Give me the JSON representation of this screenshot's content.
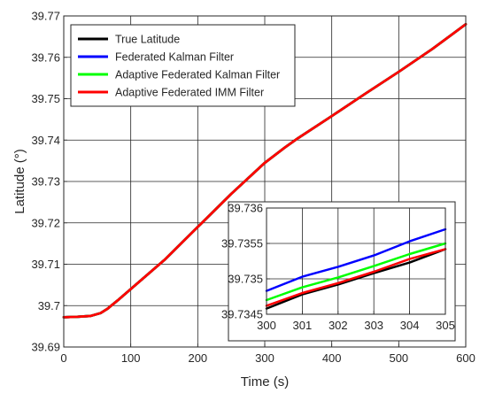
{
  "chart_data": [
    {
      "type": "line",
      "title": "",
      "xlabel": "Time (s)",
      "ylabel": "Latitude (°)",
      "xlim": [
        0,
        600
      ],
      "ylim": [
        39.69,
        39.77
      ],
      "xticks": [
        "0",
        "100",
        "200",
        "300",
        "400",
        "500",
        "600"
      ],
      "yticks": [
        "39.69",
        "39.7",
        "39.71",
        "39.72",
        "39.73",
        "39.74",
        "39.75",
        "39.76",
        "39.77"
      ],
      "grid": true,
      "legend_position": "top-left",
      "series": [
        {
          "name": "True Latitude",
          "color": "#000000",
          "x": [
            0,
            20,
            40,
            55,
            65,
            80,
            100,
            150,
            200,
            250,
            300,
            330,
            350,
            400,
            450,
            500,
            550,
            600
          ],
          "y": [
            39.6972,
            39.6973,
            39.6975,
            39.6982,
            39.6992,
            39.7012,
            39.704,
            39.711,
            39.719,
            39.727,
            39.7345,
            39.7382,
            39.7405,
            39.7458,
            39.7512,
            39.7565,
            39.762,
            39.768
          ]
        },
        {
          "name": "Federated Kalman Filter",
          "color": "#0000ff",
          "x": [
            0,
            20,
            40,
            55,
            65,
            80,
            100,
            150,
            200,
            250,
            300,
            330,
            350,
            400,
            450,
            500,
            550,
            600
          ],
          "y": [
            39.6972,
            39.6973,
            39.6975,
            39.6982,
            39.6992,
            39.7012,
            39.704,
            39.711,
            39.719,
            39.727,
            39.7345,
            39.7382,
            39.7405,
            39.7458,
            39.7512,
            39.7565,
            39.762,
            39.768
          ]
        },
        {
          "name": "Adaptive Federated Kalman Filter",
          "color": "#00ff00",
          "x": [
            0,
            20,
            40,
            55,
            65,
            80,
            100,
            150,
            200,
            250,
            300,
            330,
            350,
            400,
            450,
            500,
            550,
            600
          ],
          "y": [
            39.6972,
            39.6973,
            39.6975,
            39.6982,
            39.6992,
            39.7012,
            39.704,
            39.711,
            39.719,
            39.727,
            39.7345,
            39.7382,
            39.7405,
            39.7458,
            39.7512,
            39.7565,
            39.762,
            39.768
          ]
        },
        {
          "name": "Adaptive Federated IMM Filter",
          "color": "#ff0000",
          "x": [
            0,
            20,
            40,
            55,
            65,
            80,
            100,
            150,
            200,
            250,
            300,
            330,
            350,
            400,
            450,
            500,
            550,
            600
          ],
          "y": [
            39.6972,
            39.6973,
            39.6975,
            39.6982,
            39.6992,
            39.7012,
            39.704,
            39.711,
            39.719,
            39.727,
            39.7345,
            39.7382,
            39.7405,
            39.7458,
            39.7512,
            39.7565,
            39.762,
            39.768
          ]
        }
      ]
    },
    {
      "type": "line",
      "title": "",
      "xlabel": "",
      "ylabel": "",
      "xlim": [
        300,
        305
      ],
      "ylim": [
        39.7345,
        39.736
      ],
      "xticks": [
        "300",
        "301",
        "302",
        "303",
        "304",
        "305"
      ],
      "yticks": [
        "39.7345",
        "39.735",
        "39.7355",
        "39.736"
      ],
      "grid": true,
      "series": [
        {
          "name": "True Latitude",
          "color": "#000000",
          "x": [
            300,
            301,
            302,
            303,
            304,
            305
          ],
          "y": [
            39.73458,
            39.73478,
            39.73492,
            39.73508,
            39.73523,
            39.73542
          ]
        },
        {
          "name": "Federated Kalman Filter",
          "color": "#0000ff",
          "x": [
            300,
            301,
            302,
            303,
            304,
            305
          ],
          "y": [
            39.73483,
            39.73503,
            39.73517,
            39.73533,
            39.73553,
            39.7357
          ]
        },
        {
          "name": "Adaptive Federated Kalman Filter",
          "color": "#00ff00",
          "x": [
            300,
            301,
            302,
            303,
            304,
            305
          ],
          "y": [
            39.7347,
            39.73488,
            39.73502,
            39.73518,
            39.73535,
            39.7355
          ]
        },
        {
          "name": "Adaptive Federated IMM Filter",
          "color": "#ff0000",
          "x": [
            300,
            301,
            302,
            303,
            304,
            305
          ],
          "y": [
            39.73462,
            39.7348,
            39.73494,
            39.7351,
            39.73528,
            39.73542
          ]
        }
      ]
    }
  ]
}
